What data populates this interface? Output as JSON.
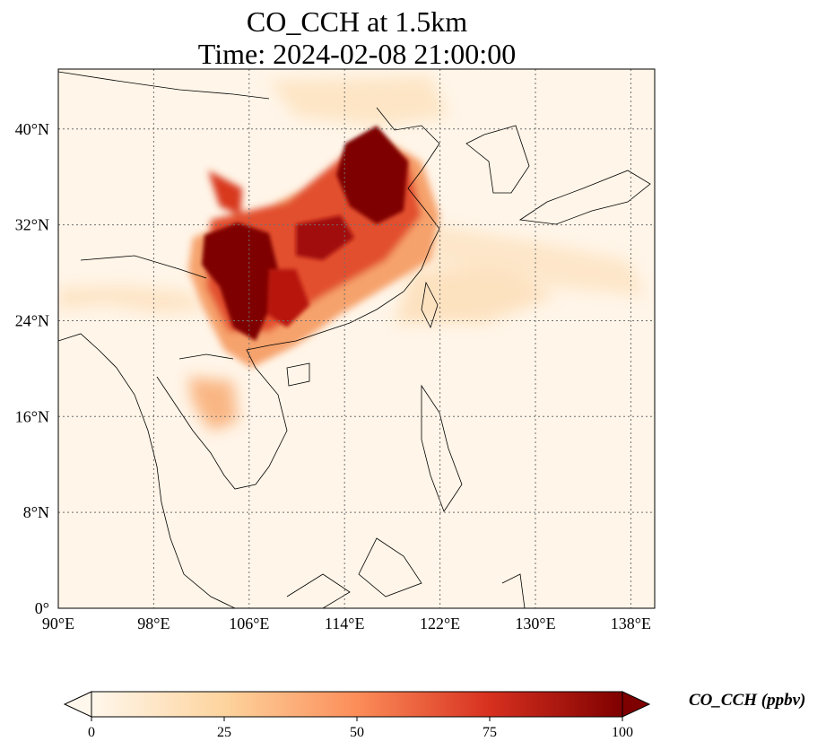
{
  "title": {
    "line1": "CO_CCH at 1.5km",
    "line2": "Time: 2024-02-08 21:00:00"
  },
  "map": {
    "extent": {
      "lon": [
        90,
        140
      ],
      "lat": [
        0,
        45
      ]
    },
    "lon_ticks": [
      {
        "value": 90,
        "label": "90°E"
      },
      {
        "value": 98,
        "label": "98°E"
      },
      {
        "value": 106,
        "label": "106°E"
      },
      {
        "value": 114,
        "label": "114°E"
      },
      {
        "value": 122,
        "label": "122°E"
      },
      {
        "value": 130,
        "label": "130°E"
      },
      {
        "value": 138,
        "label": "138°E"
      }
    ],
    "lat_ticks": [
      {
        "value": 0,
        "label": "0°"
      },
      {
        "value": 8,
        "label": "8°N"
      },
      {
        "value": 16,
        "label": "16°N"
      },
      {
        "value": 24,
        "label": "24°N"
      },
      {
        "value": 32,
        "label": "32°N"
      },
      {
        "value": 40,
        "label": "40°N"
      }
    ],
    "gridlines": true
  },
  "colorbar": {
    "label": "CO_CCH (ppbv)",
    "colormap": "OrRd",
    "range": [
      0,
      100
    ],
    "extend": "both",
    "ticks": [
      {
        "value": 0,
        "label": "0"
      },
      {
        "value": 25,
        "label": "25"
      },
      {
        "value": 50,
        "label": "50"
      },
      {
        "value": 75,
        "label": "75"
      },
      {
        "value": 100,
        "label": "100"
      }
    ],
    "colors": [
      "#fff7ec",
      "#fdd49e",
      "#fc8d59",
      "#d7301f",
      "#7f0000"
    ]
  }
}
